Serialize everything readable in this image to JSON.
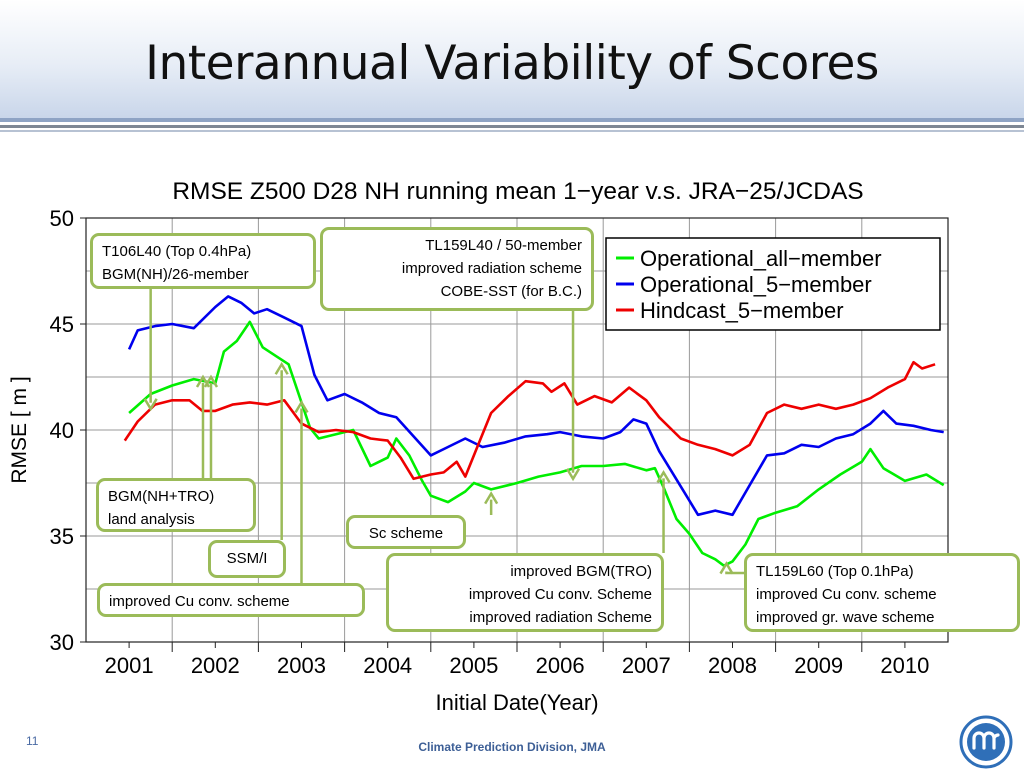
{
  "slide": {
    "title": "Interannual Variability of Scores",
    "slide_number": "11",
    "footer": "Climate Prediction Division, JMA",
    "accent_color": "#9bbb59",
    "logo": "jma-logo-icon"
  },
  "chart_data": {
    "type": "line",
    "title": "RMSE  Z500  D28    NH  running mean 1−year  v.s. JRA−25/JCDAS",
    "xlabel": "Initial Date(Year)",
    "ylabel": "RMSE [ m ]",
    "x_ticklabels": [
      "2001",
      "2002",
      "2003",
      "2004",
      "2005",
      "2006",
      "2007",
      "2008",
      "2009",
      "2010"
    ],
    "y_ticklabels": [
      "30",
      "35",
      "40",
      "45",
      "50"
    ],
    "xlim": [
      2000.5,
      2010.5
    ],
    "ylim": [
      30,
      50
    ],
    "grid": true,
    "legend_position": "top-right",
    "series": [
      {
        "name": "Operational_all−member",
        "color": "#00ee00",
        "x": [
          2001.0,
          2001.25,
          2001.5,
          2001.75,
          2002.0,
          2002.1,
          2002.25,
          2002.4,
          2002.55,
          2002.7,
          2002.85,
          2003.0,
          2003.1,
          2003.2,
          2003.4,
          2003.6,
          2003.8,
          2004.0,
          2004.1,
          2004.25,
          2004.4,
          2004.5,
          2004.7,
          2004.9,
          2005.0,
          2005.2,
          2005.5,
          2005.75,
          2006.0,
          2006.25,
          2006.5,
          2006.75,
          2007.0,
          2007.1,
          2007.2,
          2007.35,
          2007.5,
          2007.65,
          2007.8,
          2007.9,
          2008.0,
          2008.15,
          2008.3,
          2008.5,
          2008.75,
          2009.0,
          2009.25,
          2009.5,
          2009.6,
          2009.75,
          2010.0,
          2010.25,
          2010.45
        ],
        "y": [
          40.8,
          41.7,
          42.1,
          42.4,
          42.2,
          43.7,
          44.2,
          45.1,
          43.9,
          43.5,
          43.1,
          41.3,
          40.1,
          39.6,
          39.8,
          40.0,
          38.3,
          38.7,
          39.6,
          38.8,
          37.6,
          36.9,
          36.6,
          37.1,
          37.5,
          37.2,
          37.5,
          37.8,
          38.0,
          38.3,
          38.3,
          38.4,
          38.1,
          38.2,
          37.3,
          35.8,
          35.1,
          34.2,
          33.9,
          33.6,
          33.8,
          34.6,
          35.8,
          36.1,
          36.4,
          37.2,
          37.9,
          38.5,
          39.1,
          38.2,
          37.6,
          37.9,
          37.4
        ]
      },
      {
        "name": "Operational_5−member",
        "color": "#0000ee",
        "x": [
          2001.0,
          2001.1,
          2001.3,
          2001.5,
          2001.75,
          2002.0,
          2002.15,
          2002.3,
          2002.45,
          2002.6,
          2002.8,
          2003.0,
          2003.15,
          2003.3,
          2003.5,
          2003.7,
          2003.9,
          2004.1,
          2004.3,
          2004.5,
          2004.7,
          2004.9,
          2005.1,
          2005.35,
          2005.6,
          2005.85,
          2006.0,
          2006.25,
          2006.5,
          2006.7,
          2006.85,
          2007.0,
          2007.15,
          2007.3,
          2007.45,
          2007.6,
          2007.8,
          2008.0,
          2008.2,
          2008.4,
          2008.6,
          2008.8,
          2009.0,
          2009.2,
          2009.4,
          2009.6,
          2009.75,
          2009.9,
          2010.1,
          2010.3,
          2010.45
        ],
        "y": [
          43.8,
          44.7,
          44.9,
          45.0,
          44.8,
          45.8,
          46.3,
          46.0,
          45.5,
          45.7,
          45.3,
          44.9,
          42.6,
          41.4,
          41.7,
          41.3,
          40.8,
          40.6,
          39.7,
          38.8,
          39.2,
          39.6,
          39.2,
          39.4,
          39.7,
          39.8,
          39.9,
          39.7,
          39.6,
          39.9,
          40.5,
          40.3,
          39.0,
          38.0,
          37.0,
          36.0,
          36.2,
          36.0,
          37.4,
          38.8,
          38.9,
          39.3,
          39.2,
          39.6,
          39.8,
          40.3,
          40.9,
          40.3,
          40.2,
          40.0,
          39.9
        ]
      },
      {
        "name": "Hindcast_5−member",
        "color": "#ee0000",
        "x": [
          2000.95,
          2001.1,
          2001.3,
          2001.5,
          2001.7,
          2001.85,
          2002.0,
          2002.2,
          2002.4,
          2002.6,
          2002.8,
          2003.0,
          2003.2,
          2003.4,
          2003.6,
          2003.8,
          2004.0,
          2004.15,
          2004.3,
          2004.5,
          2004.65,
          2004.8,
          2004.9,
          2005.05,
          2005.2,
          2005.4,
          2005.6,
          2005.8,
          2005.9,
          2006.05,
          2006.2,
          2006.4,
          2006.6,
          2006.8,
          2007.0,
          2007.15,
          2007.4,
          2007.6,
          2007.8,
          2008.0,
          2008.2,
          2008.4,
          2008.6,
          2008.8,
          2009.0,
          2009.2,
          2009.4,
          2009.6,
          2009.8,
          2010.0,
          2010.1,
          2010.2,
          2010.35
        ],
        "y": [
          39.5,
          40.4,
          41.2,
          41.4,
          41.4,
          40.9,
          40.9,
          41.2,
          41.3,
          41.2,
          41.4,
          40.3,
          39.9,
          40.0,
          39.9,
          39.6,
          39.5,
          38.7,
          37.7,
          37.9,
          38.0,
          38.5,
          37.8,
          39.3,
          40.8,
          41.6,
          42.3,
          42.2,
          41.8,
          42.2,
          41.2,
          41.6,
          41.3,
          42.0,
          41.4,
          40.6,
          39.6,
          39.3,
          39.1,
          38.8,
          39.3,
          40.8,
          41.2,
          41.0,
          41.2,
          41.0,
          41.2,
          41.5,
          42.0,
          42.4,
          43.2,
          42.9,
          43.1
        ]
      }
    ],
    "annotations": [
      {
        "text": "T106L40 (Top 0.4hPa)\nBGM(NH)/26-member",
        "arrow_x": 2001.25,
        "arrow_y": 41.0
      },
      {
        "text": "TL159L40 / 50-member\nimproved radiation scheme\nCOBE-SST (for B.C.)",
        "arrow_x": 2006.15,
        "arrow_y": 37.7
      },
      {
        "text": "BGM(NH+TRO)\nland analysis",
        "arrow_x": 2001.95,
        "arrow_y": 42.5
      },
      {
        "text": "SSM/I",
        "arrow_x": 2002.77,
        "arrow_y": 43.1
      },
      {
        "text": "Sc scheme",
        "arrow_x": 2005.2,
        "arrow_y": 37.0
      },
      {
        "text": "improved Cu conv. scheme",
        "arrow_x": 2003.0,
        "arrow_y": 41.3
      },
      {
        "text": "improved BGM(TRO)\nimproved Cu conv. Scheme\nimproved radiation Scheme",
        "arrow_x": 2007.2,
        "arrow_y": 38.0
      },
      {
        "text": "TL159L60 (Top 0.1hPa)\nimproved Cu conv. scheme\nimproved gr. wave scheme",
        "arrow_x": 2007.93,
        "arrow_y": 33.7
      }
    ]
  }
}
